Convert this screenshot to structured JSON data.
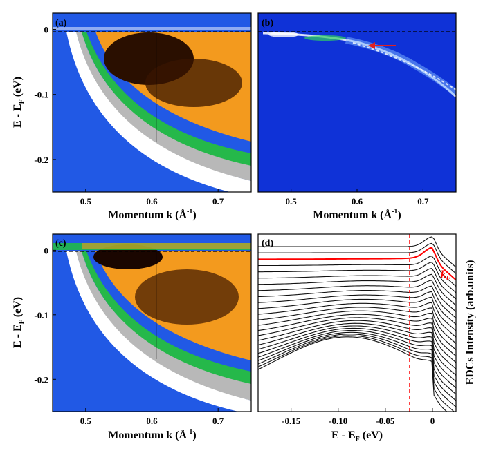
{
  "chart_data": [
    {
      "panel": "(a)",
      "type": "heatmap",
      "xlabel": "Momentum k (Å⁻¹)",
      "ylabel": "E - E_F (eV)",
      "xlim": [
        0.45,
        0.75
      ],
      "ylim": [
        -0.25,
        0.025
      ],
      "xticks": [
        "0.5",
        "0.6",
        "0.7"
      ],
      "yticks": [
        "0",
        "-0.1",
        "-0.2"
      ],
      "fermi_level_line": 0,
      "colormap": [
        "#1030d8",
        "#2b7cf0",
        "#ffffff",
        "#8a8a8a",
        "#20c040",
        "#f0a020",
        "#1a0a00"
      ]
    },
    {
      "panel": "(b)",
      "type": "heatmap",
      "xlabel": "Momentum k (Å⁻¹)",
      "ylabel": "",
      "xlim": [
        0.45,
        0.75
      ],
      "ylim": [
        -0.25,
        0.025
      ],
      "xticks": [
        "0.5",
        "0.6",
        "0.7"
      ],
      "fermi_level_line": 0,
      "arrow_color": "#e02020"
    },
    {
      "panel": "(c)",
      "type": "heatmap",
      "xlabel": "Momentum k (Å⁻¹)",
      "ylabel": "E - E_F (eV)",
      "xlim": [
        0.45,
        0.75
      ],
      "ylim": [
        -0.25,
        0.025
      ],
      "xticks": [
        "0.5",
        "0.6",
        "0.7"
      ],
      "yticks": [
        "0",
        "-0.1",
        "-0.2"
      ],
      "fermi_level_line": 0
    },
    {
      "panel": "(d)",
      "type": "line",
      "xlabel": "E - E_F (eV)",
      "ylabel": "EDCs Intensity (arb.units)",
      "xlim": [
        -0.185,
        0.025
      ],
      "xticks": [
        "-0.15",
        "-0.10",
        "-0.05",
        "0"
      ],
      "xtick_values": [
        -0.15,
        -0.1,
        -0.05,
        0
      ],
      "vline_x": -0.02,
      "vline_color": "#ff0000",
      "curve_count": 25,
      "highlighted_curve_index": 2,
      "highlight_label": "k_F",
      "highlight_color": "#ff0000"
    }
  ]
}
